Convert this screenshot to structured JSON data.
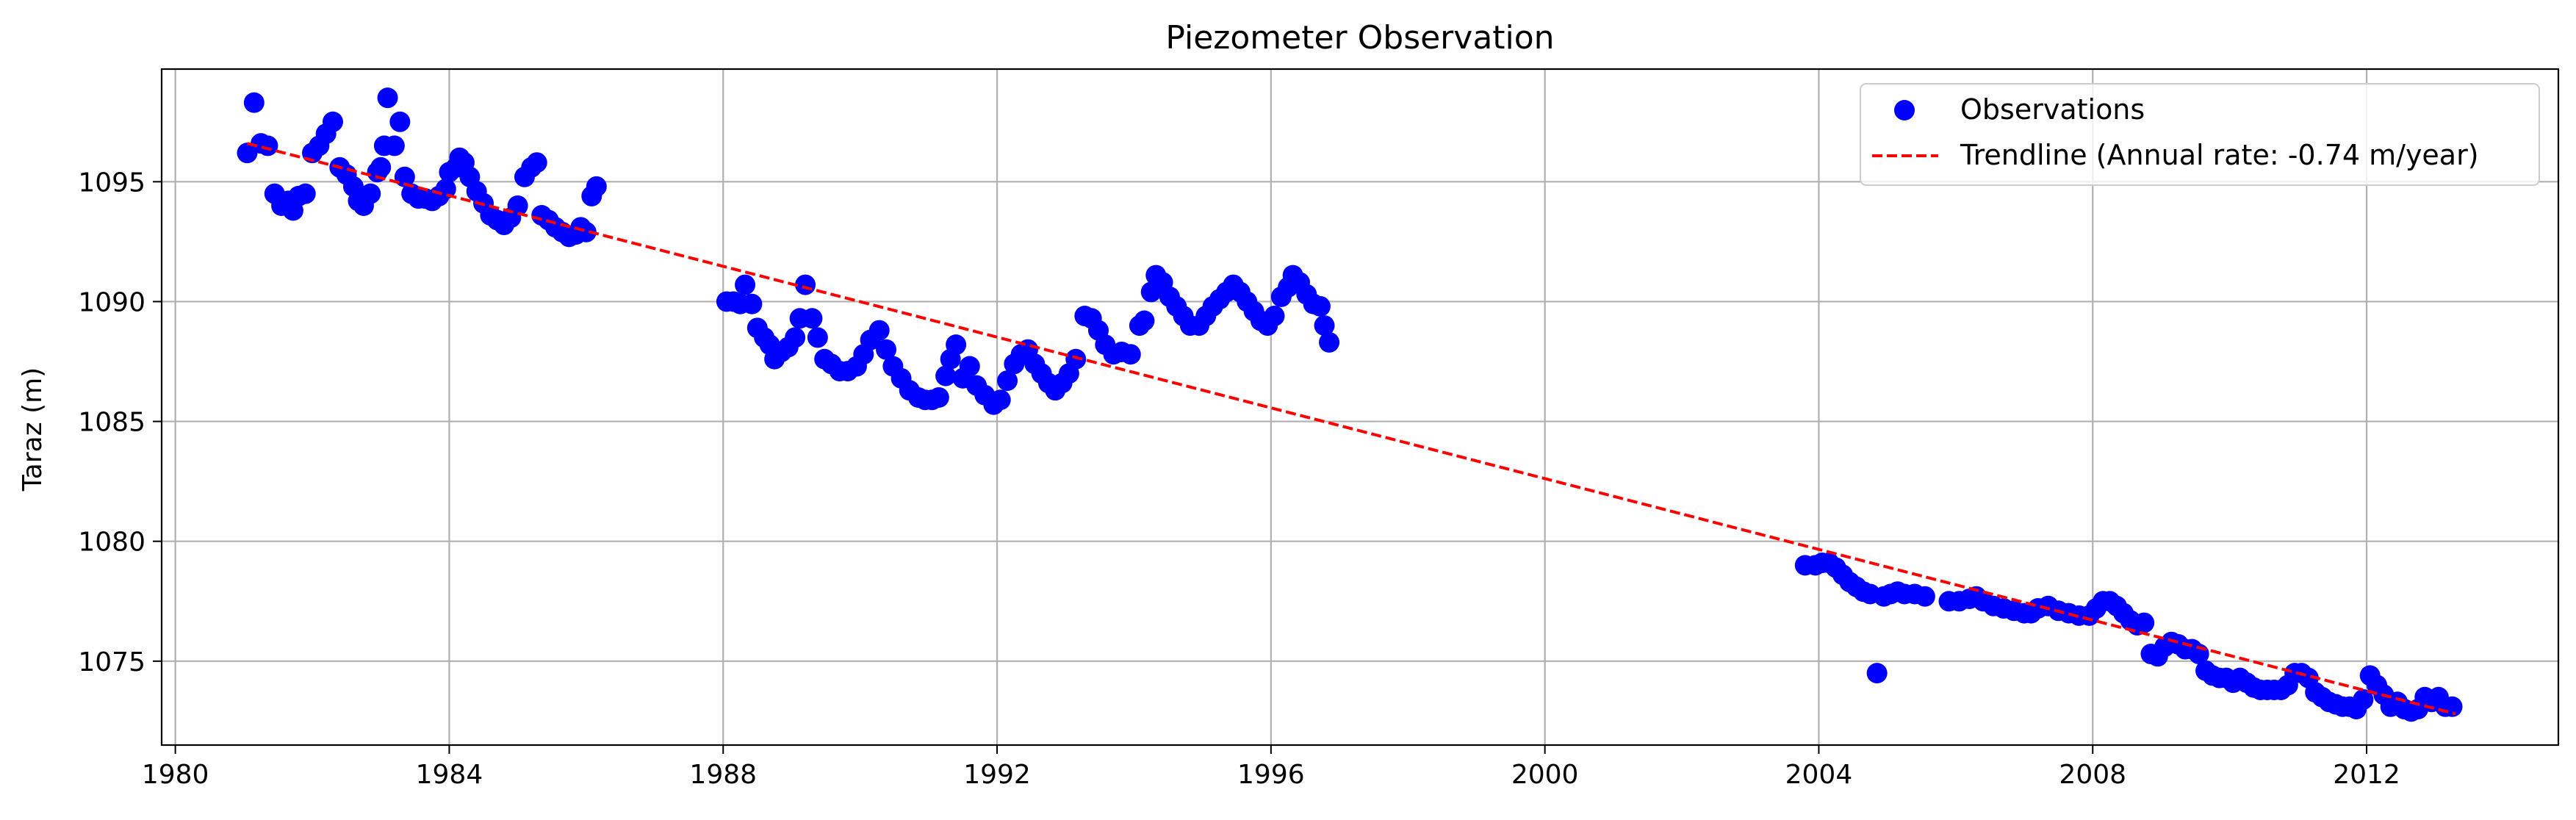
{
  "chart_data": {
    "type": "scatter",
    "title": "Piezometer Observation",
    "xlabel": "",
    "ylabel": "Taraz (m)",
    "xlim": [
      1979.8,
      2014.8
    ],
    "ylim": [
      1071.5,
      1099.7
    ],
    "xticks": [
      1980,
      1984,
      1988,
      1992,
      1996,
      2000,
      2004,
      2008,
      2012
    ],
    "yticks": [
      1075,
      1080,
      1085,
      1090,
      1095
    ],
    "grid": true,
    "legend_position": "top-right",
    "colors": {
      "observations": "#0000ff",
      "trendline": "#ff0000"
    },
    "series": [
      {
        "name": "Observations",
        "kind": "scatter",
        "points": [
          [
            1981.05,
            1096.2
          ],
          [
            1981.15,
            1098.3
          ],
          [
            1981.25,
            1096.6
          ],
          [
            1981.35,
            1096.5
          ],
          [
            1981.45,
            1094.5
          ],
          [
            1981.55,
            1094.0
          ],
          [
            1981.65,
            1094.2
          ],
          [
            1981.72,
            1093.8
          ],
          [
            1981.8,
            1094.4
          ],
          [
            1981.9,
            1094.5
          ],
          [
            1982.0,
            1096.2
          ],
          [
            1982.1,
            1096.5
          ],
          [
            1982.2,
            1097.0
          ],
          [
            1982.3,
            1097.5
          ],
          [
            1982.4,
            1095.6
          ],
          [
            1982.5,
            1095.3
          ],
          [
            1982.6,
            1094.8
          ],
          [
            1982.67,
            1094.2
          ],
          [
            1982.75,
            1094.0
          ],
          [
            1982.85,
            1094.5
          ],
          [
            1982.95,
            1095.4
          ],
          [
            1983.0,
            1095.6
          ],
          [
            1983.05,
            1096.5
          ],
          [
            1983.1,
            1098.5
          ],
          [
            1983.2,
            1096.5
          ],
          [
            1983.28,
            1097.5
          ],
          [
            1983.35,
            1095.2
          ],
          [
            1983.45,
            1094.5
          ],
          [
            1983.55,
            1094.3
          ],
          [
            1983.65,
            1094.3
          ],
          [
            1983.75,
            1094.2
          ],
          [
            1983.85,
            1094.4
          ],
          [
            1983.95,
            1094.7
          ],
          [
            1984.0,
            1095.4
          ],
          [
            1984.1,
            1095.6
          ],
          [
            1984.15,
            1096.0
          ],
          [
            1984.22,
            1095.8
          ],
          [
            1984.3,
            1095.2
          ],
          [
            1984.4,
            1094.6
          ],
          [
            1984.5,
            1094.1
          ],
          [
            1984.6,
            1093.6
          ],
          [
            1984.7,
            1093.4
          ],
          [
            1984.8,
            1093.2
          ],
          [
            1984.9,
            1093.5
          ],
          [
            1985.0,
            1094.0
          ],
          [
            1985.1,
            1095.2
          ],
          [
            1985.2,
            1095.6
          ],
          [
            1985.28,
            1095.8
          ],
          [
            1985.35,
            1093.6
          ],
          [
            1985.45,
            1093.4
          ],
          [
            1985.55,
            1093.1
          ],
          [
            1985.65,
            1092.9
          ],
          [
            1985.75,
            1092.7
          ],
          [
            1985.85,
            1092.8
          ],
          [
            1985.92,
            1093.1
          ],
          [
            1986.0,
            1092.9
          ],
          [
            1986.08,
            1094.4
          ],
          [
            1986.15,
            1094.8
          ],
          [
            1988.05,
            1090.0
          ],
          [
            1988.15,
            1090.0
          ],
          [
            1988.25,
            1089.9
          ],
          [
            1988.32,
            1090.7
          ],
          [
            1988.42,
            1089.9
          ],
          [
            1988.5,
            1088.9
          ],
          [
            1988.6,
            1088.5
          ],
          [
            1988.68,
            1088.2
          ],
          [
            1988.75,
            1087.6
          ],
          [
            1988.85,
            1087.9
          ],
          [
            1988.95,
            1088.1
          ],
          [
            1989.05,
            1088.5
          ],
          [
            1989.12,
            1089.3
          ],
          [
            1989.2,
            1090.7
          ],
          [
            1989.3,
            1089.3
          ],
          [
            1989.38,
            1088.5
          ],
          [
            1989.48,
            1087.6
          ],
          [
            1989.58,
            1087.4
          ],
          [
            1989.7,
            1087.1
          ],
          [
            1989.82,
            1087.1
          ],
          [
            1989.95,
            1087.3
          ],
          [
            1990.05,
            1087.8
          ],
          [
            1990.15,
            1088.4
          ],
          [
            1990.28,
            1088.8
          ],
          [
            1990.38,
            1088.0
          ],
          [
            1990.48,
            1087.3
          ],
          [
            1990.6,
            1086.8
          ],
          [
            1990.72,
            1086.3
          ],
          [
            1990.85,
            1086.0
          ],
          [
            1990.95,
            1085.9
          ],
          [
            1991.05,
            1085.9
          ],
          [
            1991.15,
            1086.0
          ],
          [
            1991.25,
            1086.9
          ],
          [
            1991.32,
            1087.6
          ],
          [
            1991.4,
            1088.2
          ],
          [
            1991.5,
            1086.8
          ],
          [
            1991.6,
            1087.3
          ],
          [
            1991.7,
            1086.5
          ],
          [
            1991.82,
            1086.1
          ],
          [
            1991.95,
            1085.7
          ],
          [
            1992.05,
            1085.9
          ],
          [
            1992.15,
            1086.7
          ],
          [
            1992.25,
            1087.4
          ],
          [
            1992.35,
            1087.8
          ],
          [
            1992.45,
            1088.0
          ],
          [
            1992.55,
            1087.4
          ],
          [
            1992.65,
            1087.0
          ],
          [
            1992.75,
            1086.6
          ],
          [
            1992.85,
            1086.3
          ],
          [
            1992.95,
            1086.6
          ],
          [
            1993.05,
            1087.0
          ],
          [
            1993.15,
            1087.6
          ],
          [
            1993.28,
            1089.4
          ],
          [
            1993.38,
            1089.3
          ],
          [
            1993.48,
            1088.8
          ],
          [
            1993.58,
            1088.2
          ],
          [
            1993.7,
            1087.8
          ],
          [
            1993.82,
            1087.9
          ],
          [
            1993.95,
            1087.8
          ],
          [
            1994.08,
            1089.0
          ],
          [
            1994.15,
            1089.2
          ],
          [
            1994.25,
            1090.4
          ],
          [
            1994.32,
            1091.1
          ],
          [
            1994.42,
            1090.8
          ],
          [
            1994.52,
            1090.2
          ],
          [
            1994.62,
            1089.8
          ],
          [
            1994.72,
            1089.4
          ],
          [
            1994.82,
            1089.0
          ],
          [
            1994.95,
            1089.0
          ],
          [
            1995.05,
            1089.4
          ],
          [
            1995.15,
            1089.8
          ],
          [
            1995.25,
            1090.1
          ],
          [
            1995.35,
            1090.4
          ],
          [
            1995.45,
            1090.7
          ],
          [
            1995.55,
            1090.4
          ],
          [
            1995.65,
            1090.0
          ],
          [
            1995.75,
            1089.6
          ],
          [
            1995.85,
            1089.2
          ],
          [
            1995.95,
            1089.0
          ],
          [
            1996.05,
            1089.4
          ],
          [
            1996.15,
            1090.2
          ],
          [
            1996.25,
            1090.6
          ],
          [
            1996.32,
            1091.1
          ],
          [
            1996.42,
            1090.8
          ],
          [
            1996.52,
            1090.3
          ],
          [
            1996.62,
            1089.9
          ],
          [
            1996.72,
            1089.8
          ],
          [
            1996.78,
            1089.0
          ],
          [
            1996.85,
            1088.3
          ],
          [
            2003.8,
            1079.0
          ],
          [
            2003.95,
            1079.0
          ],
          [
            2004.05,
            1079.1
          ],
          [
            2004.15,
            1079.1
          ],
          [
            2004.25,
            1078.9
          ],
          [
            2004.35,
            1078.6
          ],
          [
            2004.45,
            1078.3
          ],
          [
            2004.55,
            1078.1
          ],
          [
            2004.65,
            1077.9
          ],
          [
            2004.75,
            1077.8
          ],
          [
            2004.85,
            1074.5
          ],
          [
            2004.95,
            1077.7
          ],
          [
            2005.05,
            1077.8
          ],
          [
            2005.15,
            1077.9
          ],
          [
            2005.25,
            1077.8
          ],
          [
            2005.4,
            1077.8
          ],
          [
            2005.55,
            1077.7
          ],
          [
            2005.9,
            1077.5
          ],
          [
            2006.05,
            1077.5
          ],
          [
            2006.2,
            1077.6
          ],
          [
            2006.3,
            1077.7
          ],
          [
            2006.4,
            1077.5
          ],
          [
            2006.55,
            1077.3
          ],
          [
            2006.7,
            1077.2
          ],
          [
            2006.85,
            1077.1
          ],
          [
            2007.0,
            1077.0
          ],
          [
            2007.1,
            1077.0
          ],
          [
            2007.2,
            1077.2
          ],
          [
            2007.35,
            1077.3
          ],
          [
            2007.5,
            1077.1
          ],
          [
            2007.65,
            1077.0
          ],
          [
            2007.8,
            1076.9
          ],
          [
            2007.95,
            1076.9
          ],
          [
            2008.05,
            1077.2
          ],
          [
            2008.15,
            1077.5
          ],
          [
            2008.25,
            1077.5
          ],
          [
            2008.35,
            1077.3
          ],
          [
            2008.45,
            1077.0
          ],
          [
            2008.55,
            1076.7
          ],
          [
            2008.65,
            1076.5
          ],
          [
            2008.75,
            1076.6
          ],
          [
            2008.85,
            1075.3
          ],
          [
            2008.95,
            1075.2
          ],
          [
            2009.05,
            1075.6
          ],
          [
            2009.15,
            1075.8
          ],
          [
            2009.25,
            1075.7
          ],
          [
            2009.35,
            1075.5
          ],
          [
            2009.45,
            1075.5
          ],
          [
            2009.55,
            1075.3
          ],
          [
            2009.65,
            1074.6
          ],
          [
            2009.75,
            1074.4
          ],
          [
            2009.85,
            1074.3
          ],
          [
            2009.95,
            1074.3
          ],
          [
            2010.05,
            1074.1
          ],
          [
            2010.15,
            1074.3
          ],
          [
            2010.25,
            1074.1
          ],
          [
            2010.35,
            1073.9
          ],
          [
            2010.45,
            1073.8
          ],
          [
            2010.55,
            1073.8
          ],
          [
            2010.65,
            1073.8
          ],
          [
            2010.75,
            1073.8
          ],
          [
            2010.85,
            1074.0
          ],
          [
            2010.95,
            1074.5
          ],
          [
            2011.05,
            1074.5
          ],
          [
            2011.15,
            1074.3
          ],
          [
            2011.25,
            1073.7
          ],
          [
            2011.35,
            1073.5
          ],
          [
            2011.45,
            1073.3
          ],
          [
            2011.55,
            1073.2
          ],
          [
            2011.65,
            1073.1
          ],
          [
            2011.75,
            1073.1
          ],
          [
            2011.85,
            1073.0
          ],
          [
            2011.95,
            1073.4
          ],
          [
            2012.05,
            1074.4
          ],
          [
            2012.15,
            1074.0
          ],
          [
            2012.25,
            1073.6
          ],
          [
            2012.35,
            1073.1
          ],
          [
            2012.45,
            1073.3
          ],
          [
            2012.55,
            1073.0
          ],
          [
            2012.65,
            1072.9
          ],
          [
            2012.75,
            1073.0
          ],
          [
            2012.85,
            1073.5
          ],
          [
            2012.95,
            1073.3
          ],
          [
            2013.05,
            1073.5
          ],
          [
            2013.15,
            1073.1
          ],
          [
            2013.25,
            1073.1
          ]
        ]
      },
      {
        "name": "Trendline (Annual rate: -0.74 m/year)",
        "kind": "line",
        "style": "dashed",
        "points": [
          [
            1981.05,
            1096.6
          ],
          [
            2013.3,
            1072.8
          ]
        ]
      }
    ]
  }
}
